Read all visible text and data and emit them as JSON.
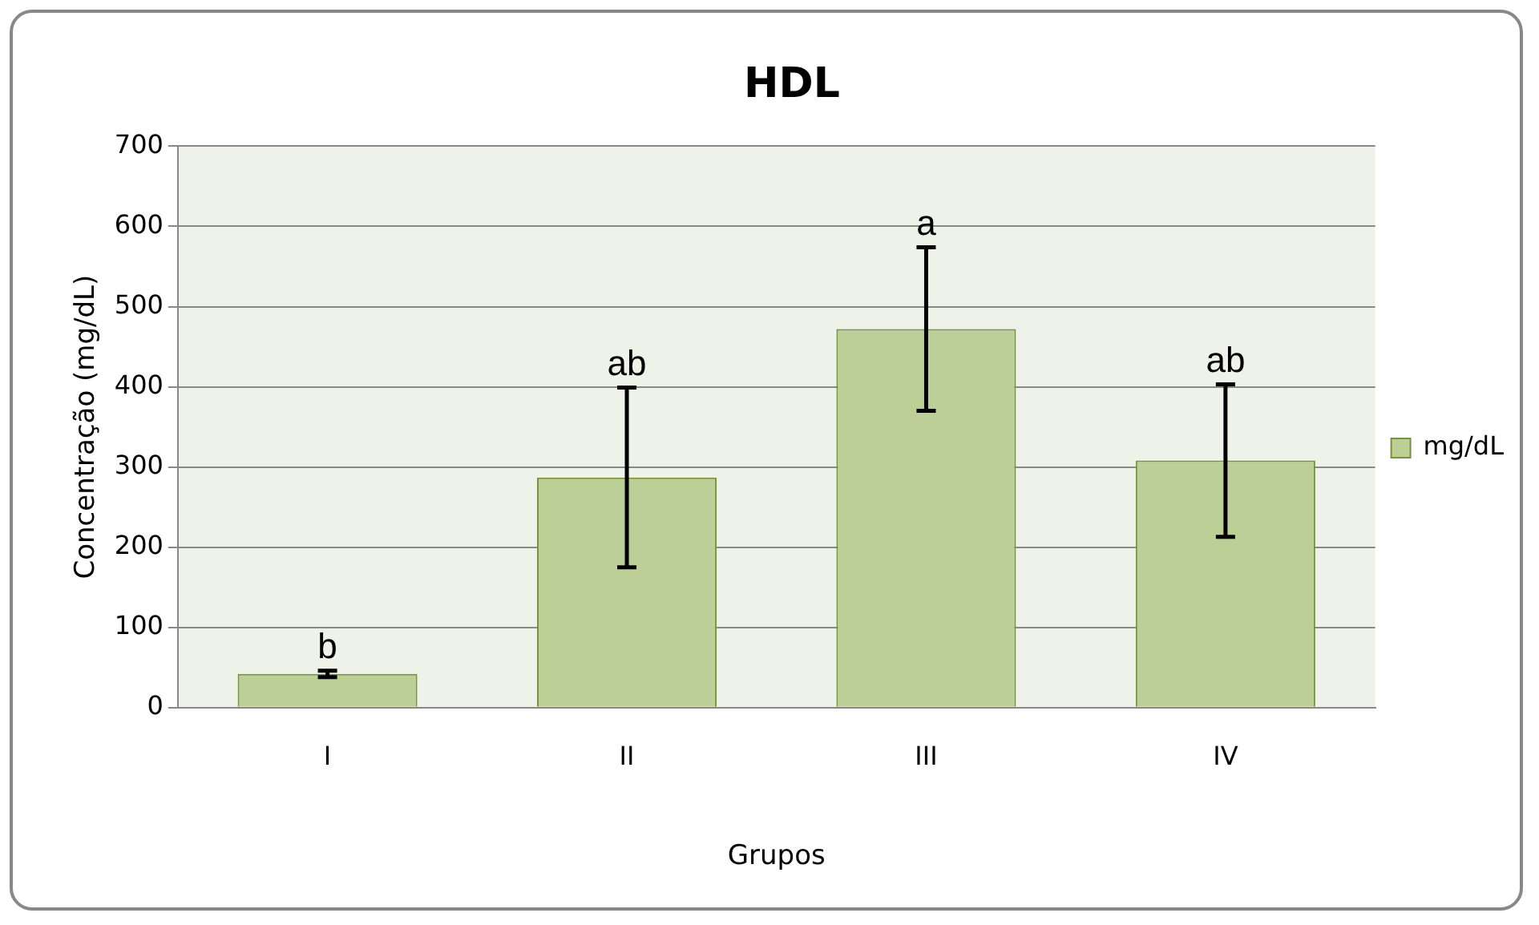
{
  "chart_data": {
    "type": "bar",
    "title": "HDL",
    "xlabel": "Grupos",
    "ylabel": "Concentração (mg/dL)",
    "categories": [
      "I",
      "II",
      "III",
      "IV"
    ],
    "series": [
      {
        "name": "mg/dL",
        "color": "#bbcf97",
        "values": [
          42,
          287,
          472,
          308
        ],
        "errors": [
          4,
          112,
          102,
          95
        ]
      }
    ],
    "ylim": [
      0,
      700
    ],
    "yticks": [
      0,
      100,
      200,
      300,
      400,
      500,
      600,
      700
    ],
    "grid": "y",
    "legend": "right",
    "annotations": [
      {
        "text": "b",
        "x": "I",
        "y": 46
      },
      {
        "text": "ab",
        "x": "II",
        "y": 399
      },
      {
        "text": "a",
        "x": "III",
        "y": 574
      },
      {
        "text": "ab",
        "x": "IV",
        "y": 403
      }
    ]
  }
}
